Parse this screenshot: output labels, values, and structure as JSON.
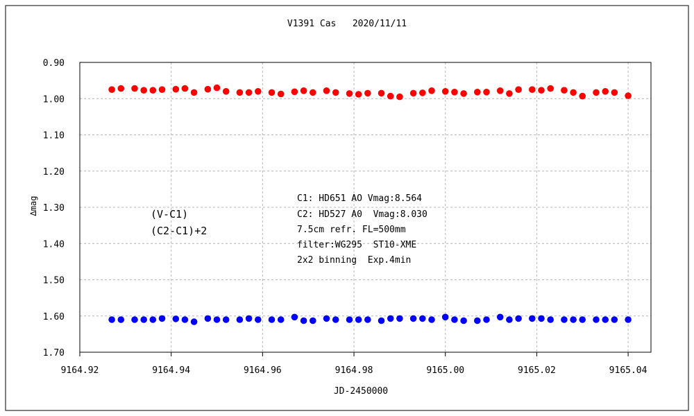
{
  "chart_data": {
    "type": "scatter",
    "title": "V1391 Cas   2020/11/11",
    "xlabel": "JD-2450000",
    "ylabel": "∆mag",
    "xlim": [
      9164.92,
      9165.045
    ],
    "ylim": [
      0.9,
      1.7
    ],
    "y_inverted": true,
    "x_ticks": [
      "9164.92",
      "9164.94",
      "9164.96",
      "9164.98",
      "9165.00",
      "9165.02",
      "9165.04"
    ],
    "y_ticks": [
      "0.90",
      "1.00",
      "1.10",
      "1.20",
      "1.30",
      "1.40",
      "1.50",
      "1.60",
      "1.70"
    ],
    "grid": true,
    "legend_position": "left-middle",
    "series": [
      {
        "name": "(V-C1)",
        "color": "#ff0000",
        "x": [
          9164.927,
          9164.929,
          9164.932,
          9164.934,
          9164.936,
          9164.938,
          9164.941,
          9164.943,
          9164.945,
          9164.948,
          9164.95,
          9164.952,
          9164.955,
          9164.957,
          9164.959,
          9164.962,
          9164.964,
          9164.967,
          9164.969,
          9164.971,
          9164.974,
          9164.976,
          9164.979,
          9164.981,
          9164.983,
          9164.986,
          9164.988,
          9164.99,
          9164.993,
          9164.995,
          9164.997,
          9165.0,
          9165.002,
          9165.004,
          9165.007,
          9165.009,
          9165.012,
          9165.014,
          9165.016,
          9165.019,
          9165.021,
          9165.023,
          9165.026,
          9165.028,
          9165.03,
          9165.033,
          9165.035,
          9165.037,
          9165.04
        ],
        "y": [
          0.975,
          0.972,
          0.972,
          0.977,
          0.977,
          0.975,
          0.974,
          0.972,
          0.983,
          0.974,
          0.97,
          0.98,
          0.983,
          0.983,
          0.98,
          0.983,
          0.987,
          0.981,
          0.978,
          0.983,
          0.978,
          0.983,
          0.986,
          0.988,
          0.985,
          0.985,
          0.993,
          0.995,
          0.985,
          0.984,
          0.978,
          0.98,
          0.982,
          0.986,
          0.982,
          0.982,
          0.978,
          0.986,
          0.975,
          0.975,
          0.977,
          0.972,
          0.977,
          0.983,
          0.993,
          0.983,
          0.98,
          0.983,
          0.992
        ]
      },
      {
        "name": "(C2-C1)+2",
        "color": "#0000ff",
        "x": [
          9164.927,
          9164.929,
          9164.932,
          9164.934,
          9164.936,
          9164.938,
          9164.941,
          9164.943,
          9164.945,
          9164.948,
          9164.95,
          9164.952,
          9164.955,
          9164.957,
          9164.959,
          9164.962,
          9164.964,
          9164.967,
          9164.969,
          9164.971,
          9164.974,
          9164.976,
          9164.979,
          9164.981,
          9164.983,
          9164.986,
          9164.988,
          9164.99,
          9164.993,
          9164.995,
          9164.997,
          9165.0,
          9165.002,
          9165.004,
          9165.007,
          9165.009,
          9165.012,
          9165.014,
          9165.016,
          9165.019,
          9165.021,
          9165.023,
          9165.026,
          9165.028,
          9165.03,
          9165.033,
          9165.035,
          9165.037,
          9165.04
        ],
        "y": [
          1.61,
          1.61,
          1.61,
          1.61,
          1.61,
          1.607,
          1.608,
          1.61,
          1.616,
          1.607,
          1.61,
          1.61,
          1.61,
          1.607,
          1.61,
          1.61,
          1.61,
          1.603,
          1.613,
          1.613,
          1.607,
          1.61,
          1.61,
          1.61,
          1.61,
          1.613,
          1.607,
          1.607,
          1.607,
          1.607,
          1.61,
          1.603,
          1.61,
          1.613,
          1.613,
          1.61,
          1.603,
          1.61,
          1.607,
          1.607,
          1.607,
          1.61,
          1.61,
          1.61,
          1.61,
          1.61,
          1.61,
          1.61,
          1.61
        ]
      }
    ],
    "annotations": [
      "C1: HD651 AO Vmag:8.564",
      "C2: HD527 A0  Vmag:8.030",
      "7.5cm refr. FL=500mm",
      "filter:WG295  ST10-XME",
      "2x2 binning  Exp.4min"
    ]
  }
}
